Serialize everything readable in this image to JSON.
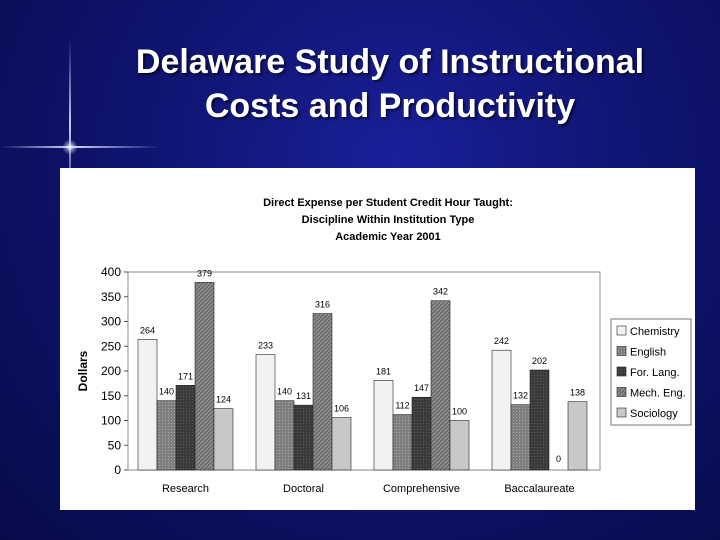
{
  "slide": {
    "title_line1": "Delaware Study of Instructional",
    "title_line2": "Costs and Productivity"
  },
  "chart_data": {
    "type": "bar",
    "title_lines": [
      "Direct Expense per Student Credit Hour Taught:",
      "Discipline Within Institution Type",
      "Academic Year 2001"
    ],
    "xlabel": "",
    "ylabel": "Dollars",
    "ylim": [
      0,
      400
    ],
    "yticks": [
      0,
      50,
      100,
      150,
      200,
      250,
      300,
      350,
      400
    ],
    "categories": [
      "Research",
      "Doctoral",
      "Comprehensive",
      "Baccalaureate"
    ],
    "series": [
      {
        "name": "Chemistry",
        "values": [
          264,
          233,
          181,
          242
        ],
        "color": "#f2f2f2",
        "pattern": "none"
      },
      {
        "name": "English",
        "values": [
          140,
          140,
          112,
          132
        ],
        "color": "#7f7f7f",
        "pattern": "dots"
      },
      {
        "name": "For. Lang.",
        "values": [
          171,
          131,
          147,
          202
        ],
        "color": "#3a3a3a",
        "pattern": "dots"
      },
      {
        "name": "Mech. Eng.",
        "values": [
          379,
          316,
          342,
          0
        ],
        "color": "#6e6e6e",
        "pattern": "diagonal"
      },
      {
        "name": "Sociology",
        "values": [
          124,
          106,
          100,
          138
        ],
        "color": "#c8c8c8",
        "pattern": "none"
      }
    ],
    "legend_position": "right",
    "grid": false
  }
}
